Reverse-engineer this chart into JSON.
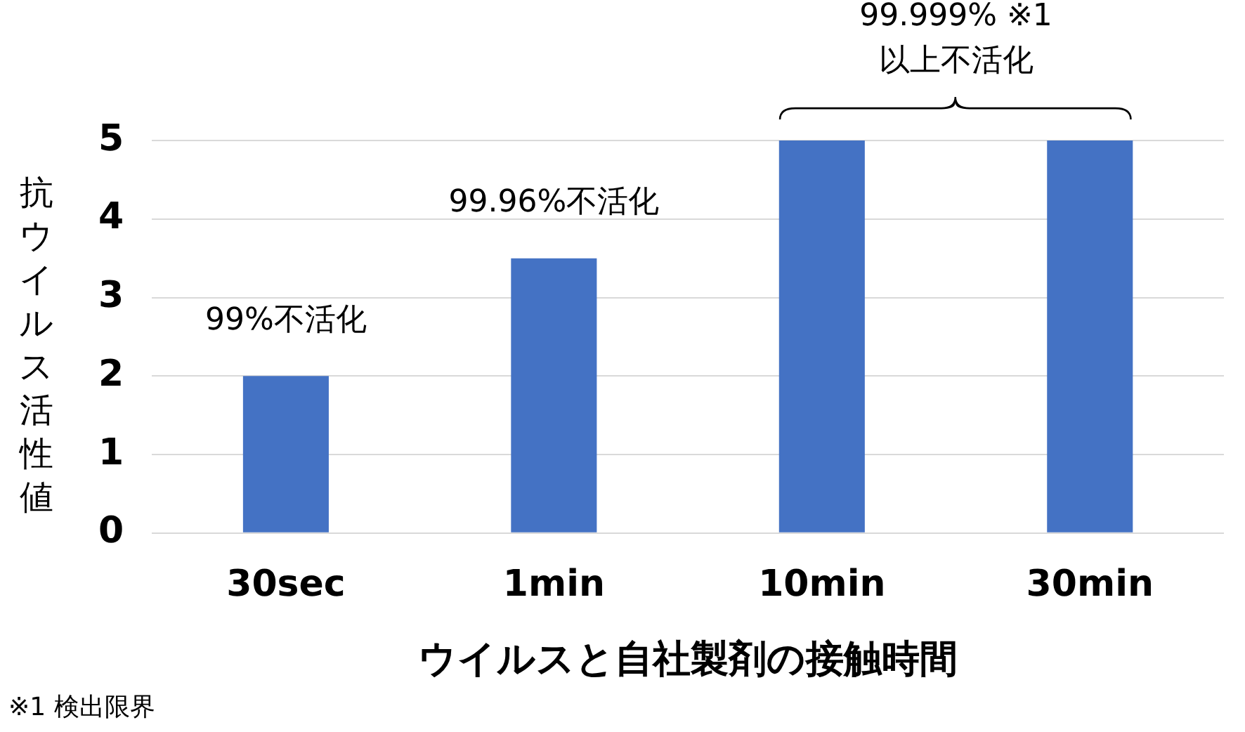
{
  "chart_data": {
    "type": "bar",
    "xlabel": "ウイルスと自社製剤の接触時間",
    "ylabel": "抗ウイルス活性値",
    "categories": [
      "30sec",
      "1min",
      "10min",
      "30min"
    ],
    "values": [
      2,
      3.5,
      5,
      5
    ],
    "color": "#4472c4",
    "ylim": [
      0,
      5
    ],
    "yticks": [
      0,
      1,
      2,
      3,
      4,
      5
    ],
    "grid": "y",
    "legend": false,
    "annotations": [
      {
        "text": "99%不活化",
        "x": "30sec",
        "y": 2
      },
      {
        "text": "99.96%不活化",
        "x": "1min",
        "y": 3.5
      },
      "99.999% ※1\n以上不活化",
      "※1 検出限界"
    ]
  }
}
